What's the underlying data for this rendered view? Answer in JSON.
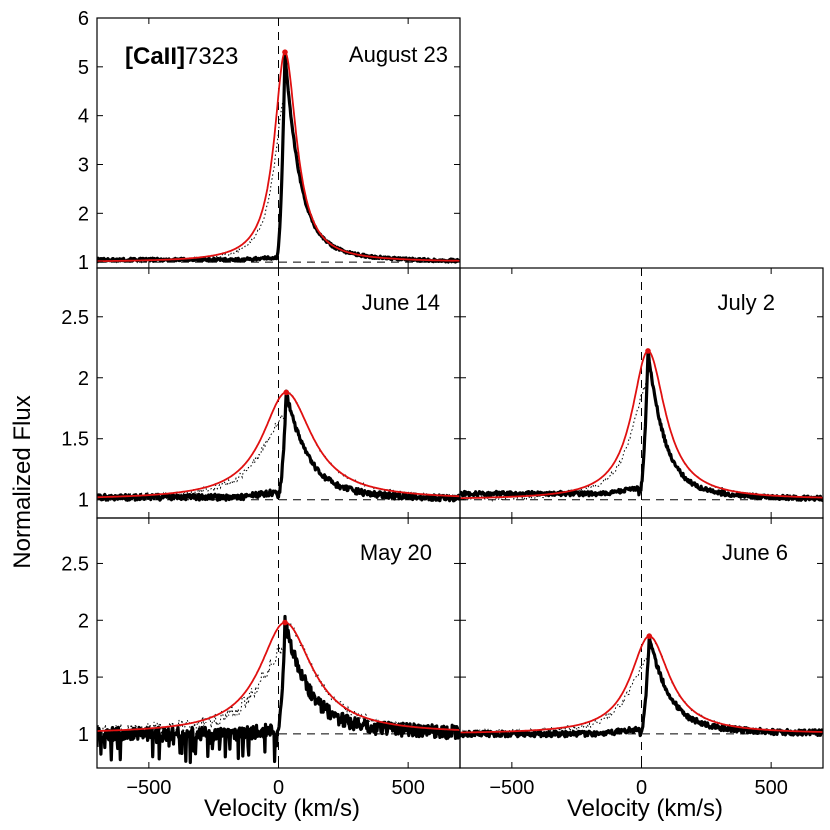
{
  "chart_data": {
    "type": "line",
    "title": "[CaII]7323",
    "title_bold_part": "[CaII]",
    "title_suffix": "7323",
    "xlabel_left": "Velocity  (km/s)",
    "xlabel_right": "Velocity  (km/s)",
    "ylabel": "Normalized Flux",
    "xlim": [
      -700,
      700
    ],
    "x_ticks": [
      -500,
      0,
      500
    ],
    "x_tick_labels": [
      "−500",
      "0",
      "500"
    ],
    "panels": [
      {
        "label": "August 23",
        "ylim": [
          0.88,
          6.0
        ],
        "y_ticks": [
          1,
          2,
          3,
          4,
          5,
          6
        ],
        "y_tick_labels": [
          "1",
          "2",
          "3",
          "4",
          "5",
          "6"
        ],
        "peak": 5.3,
        "peak_v": 25,
        "model_width": 40,
        "obs_blue_level": 1.05,
        "obs_rise_v": 10,
        "obs_tail_decay": 75,
        "noise": 0.03
      },
      {
        "label": "June 14",
        "ylim": [
          0.85,
          2.9
        ],
        "y_ticks": [
          1,
          1.5,
          2,
          2.5
        ],
        "y_tick_labels": [
          "1",
          "1.5",
          "2",
          "2.5"
        ],
        "peak": 1.88,
        "peak_v": 30,
        "model_width": 90,
        "obs_blue_level": 1.02,
        "obs_rise_v": 15,
        "obs_tail_decay": 110,
        "noise": 0.025
      },
      {
        "label": "July 2",
        "ylim": [
          0.85,
          2.9
        ],
        "y_ticks": [
          1,
          1.5,
          2,
          2.5
        ],
        "y_tick_labels": [
          "",
          "",
          "",
          ""
        ],
        "peak": 2.22,
        "peak_v": 25,
        "model_width": 60,
        "obs_blue_level": 1.05,
        "obs_rise_v": 10,
        "obs_tail_decay": 85,
        "noise": 0.018
      },
      {
        "label": "May 20",
        "ylim": [
          0.7,
          2.9
        ],
        "y_ticks": [
          1,
          1.5,
          2,
          2.5
        ],
        "y_tick_labels": [
          "1",
          "1.5",
          "2",
          "2.5"
        ],
        "peak": 1.98,
        "peak_v": 25,
        "model_width": 95,
        "obs_blue_level": 1.0,
        "obs_rise_v": 12,
        "obs_tail_decay": 120,
        "noise": 0.06
      },
      {
        "label": "June 6",
        "ylim": [
          0.7,
          2.9
        ],
        "y_ticks": [
          1,
          1.5,
          2,
          2.5
        ],
        "y_tick_labels": [
          "",
          "",
          "",
          ""
        ],
        "peak": 1.86,
        "peak_v": 30,
        "model_width": 70,
        "obs_blue_level": 1.0,
        "obs_rise_v": 12,
        "obs_tail_decay": 100,
        "noise": 0.025
      }
    ],
    "series_styles": {
      "observed": "#000000",
      "model": "#e01010",
      "reference": "#000000"
    }
  }
}
